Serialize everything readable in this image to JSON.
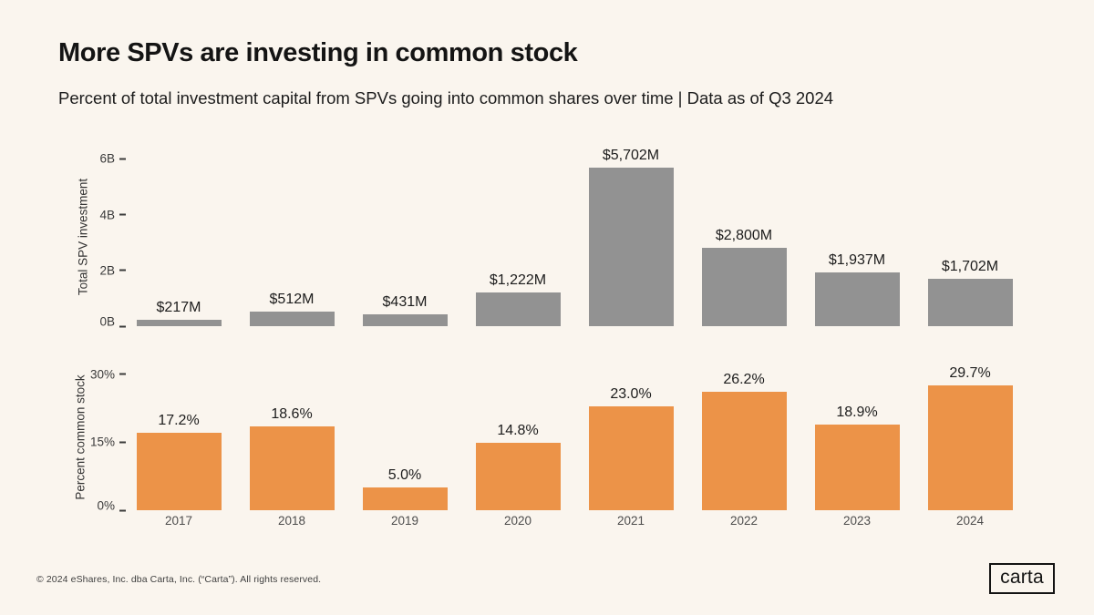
{
  "header": {
    "title": "More SPVs are investing in common stock",
    "subtitle": "Percent of total investment capital from SPVs going into common shares over time | Data as of Q3 2024"
  },
  "colors": {
    "background": "#FAF5EE",
    "bar_gray": "#929292",
    "bar_orange": "#EC9348",
    "text_dark": "#1C1C1C",
    "axis_text": "#3A3A3A"
  },
  "chart_data": [
    {
      "type": "bar",
      "title": "Total SPV investment by year",
      "ylabel": "Total SPV investment",
      "xlabel": "",
      "categories": [
        "2017",
        "2018",
        "2019",
        "2020",
        "2021",
        "2022",
        "2023",
        "2024"
      ],
      "values": [
        217,
        512,
        431,
        1222,
        5702,
        2800,
        1937,
        1702
      ],
      "units": "millions USD",
      "bar_labels": [
        "$217M",
        "$512M",
        "$431M",
        "$1,222M",
        "$5,702M",
        "$2,800M",
        "$1,937M",
        "$1,702M"
      ],
      "yticks": [
        {
          "value": 0,
          "label": "0B"
        },
        {
          "value": 2000,
          "label": "2B"
        },
        {
          "value": 4000,
          "label": "4B"
        },
        {
          "value": 6000,
          "label": "6B"
        }
      ],
      "ylim": [
        0,
        6400
      ],
      "bar_color": "#929292",
      "grid": false,
      "legend": "none",
      "show_x_labels": false
    },
    {
      "type": "bar",
      "title": "Percent common stock by year",
      "ylabel": "Percent common stock",
      "xlabel": "",
      "categories": [
        "2017",
        "2018",
        "2019",
        "2020",
        "2021",
        "2022",
        "2023",
        "2024"
      ],
      "values": [
        17.2,
        18.6,
        5.0,
        14.8,
        23.0,
        26.2,
        18.9,
        29.7
      ],
      "units": "percent",
      "bar_labels": [
        "17.2%",
        "18.6%",
        "5.0%",
        "14.8%",
        "23.0%",
        "26.2%",
        "18.9%",
        "29.7%"
      ],
      "yticks": [
        {
          "value": 0,
          "label": "0%"
        },
        {
          "value": 15,
          "label": "15%"
        },
        {
          "value": 30,
          "label": "30%"
        }
      ],
      "ylim": [
        0,
        32
      ],
      "bar_color": "#EC9348",
      "grid": false,
      "legend": "none",
      "show_x_labels": true
    }
  ],
  "footer": {
    "copyright": "© 2024 eShares, Inc. dba Carta, Inc. (“Carta”). All rights reserved.",
    "logo_text": "carta"
  }
}
